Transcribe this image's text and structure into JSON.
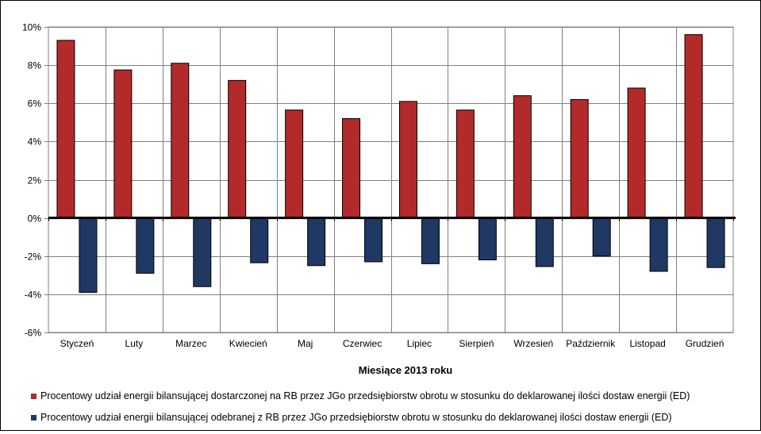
{
  "chart_data": {
    "type": "bar",
    "categories": [
      "Styczeń",
      "Luty",
      "Marzec",
      "Kwiecień",
      "Maj",
      "Czerwiec",
      "Lipiec",
      "Sierpień",
      "Wrzesień",
      "Październik",
      "Listopad",
      "Grudzień"
    ],
    "series": [
      {
        "name": "Procentowy udział energii bilansującej dostarczonej na RB przez JGo przedsiębiorstw obrotu w stosunku do deklarowanej ilości dostaw energii (ED)",
        "color": "#b22a2a",
        "values": [
          9.3,
          7.75,
          8.1,
          7.2,
          5.65,
          5.2,
          6.1,
          5.65,
          6.4,
          6.2,
          6.8,
          9.6
        ]
      },
      {
        "name": "Procentowy udział energii bilansującej odebranej z RB przez JGo przedsiębiorstw obrotu w stosunku do deklarowanej ilości dostaw energii (ED)",
        "color": "#1f3864",
        "values": [
          -3.9,
          -2.9,
          -3.6,
          -2.35,
          -2.5,
          -2.3,
          -2.4,
          -2.2,
          -2.55,
          -2.0,
          -2.8,
          -2.6
        ]
      }
    ],
    "xlabel": "Miesiące 2013  roku",
    "ylabel": "",
    "ylim": [
      -6,
      10
    ],
    "yticks": [
      -6,
      -4,
      -2,
      0,
      2,
      4,
      6,
      8,
      10
    ],
    "ytick_format": "%",
    "grid": true,
    "legend_position": "bottom"
  }
}
